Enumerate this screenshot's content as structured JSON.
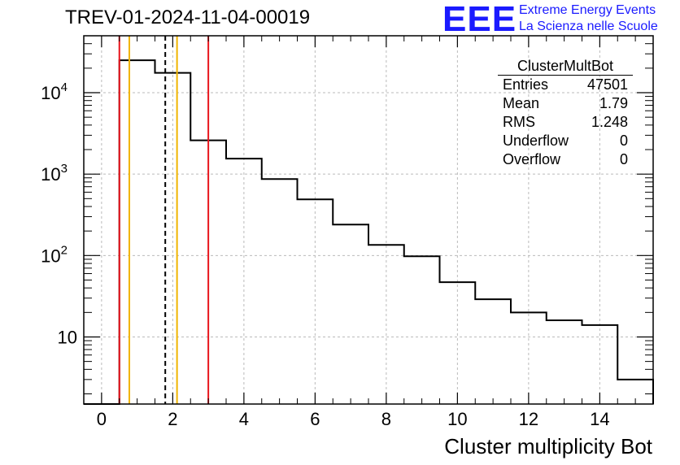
{
  "header": {
    "title": "TREV-01-2024-11-04-00019",
    "logo": "EEE",
    "logo_line1": "Extreme Energy Events",
    "logo_line2": "La Scienza nelle Scuole"
  },
  "stats": {
    "title": "ClusterMultBot",
    "rows": [
      {
        "label": "Entries",
        "value": "47501"
      },
      {
        "label": "Mean",
        "value": "1.79"
      },
      {
        "label": "RMS",
        "value": "1.248"
      },
      {
        "label": "Underflow",
        "value": "0"
      },
      {
        "label": "Overflow",
        "value": "0"
      }
    ]
  },
  "colors": {
    "histogram": "#000000",
    "red_line": "#e8141c",
    "orange_line": "#f0b400",
    "mean_line": "#000000",
    "grid": "#bbbbbb"
  },
  "chart_data": {
    "type": "bar",
    "xlabel": "Cluster multiplicity Bot",
    "ylabel": "",
    "yscale": "log",
    "xlim": [
      -0.5,
      15.5
    ],
    "ylim": [
      1.5,
      50000
    ],
    "grid": true,
    "x_ticks": [
      "0",
      "2",
      "4",
      "6",
      "8",
      "10",
      "12",
      "14"
    ],
    "y_ticks": [
      "10",
      "10^2",
      "10^3",
      "10^4"
    ],
    "bins": [
      {
        "x": 0,
        "value": 0
      },
      {
        "x": 1,
        "value": 25000
      },
      {
        "x": 2,
        "value": 17500
      },
      {
        "x": 3,
        "value": 2600
      },
      {
        "x": 4,
        "value": 1550
      },
      {
        "x": 5,
        "value": 870
      },
      {
        "x": 6,
        "value": 490
      },
      {
        "x": 7,
        "value": 240
      },
      {
        "x": 8,
        "value": 135
      },
      {
        "x": 9,
        "value": 98
      },
      {
        "x": 10,
        "value": 47
      },
      {
        "x": 11,
        "value": 29
      },
      {
        "x": 12,
        "value": 20
      },
      {
        "x": 13,
        "value": 16
      },
      {
        "x": 14,
        "value": 14
      },
      {
        "x": 15,
        "value": 3
      }
    ],
    "vertical_lines": [
      {
        "x": 0.5,
        "color": "red"
      },
      {
        "x": 3.0,
        "color": "red"
      },
      {
        "x": 0.78,
        "color": "orange"
      },
      {
        "x": 2.12,
        "color": "orange"
      },
      {
        "x": 1.79,
        "color": "mean",
        "dashed": true
      }
    ]
  }
}
